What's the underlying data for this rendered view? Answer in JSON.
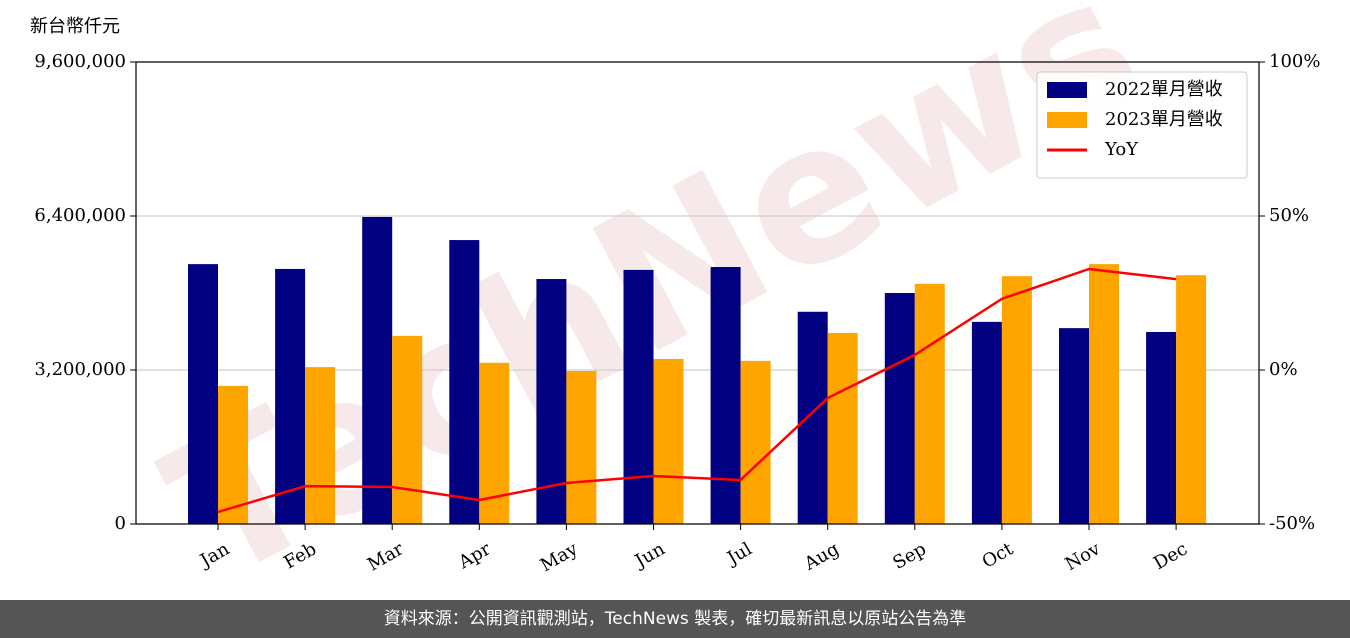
{
  "chart_data": {
    "type": "bar",
    "ylabel": "新台幣仟元",
    "watermark": "TechNews",
    "footer": "資料來源：公開資訊觀測站，TechNews 製表，確切最新訊息以原站公告為準",
    "categories": [
      "Jan",
      "Feb",
      "Mar",
      "Apr",
      "May",
      "Jun",
      "Jul",
      "Aug",
      "Sep",
      "Oct",
      "Nov",
      "Dec"
    ],
    "series": [
      {
        "name": "2022單月營收",
        "color": "#000080",
        "type": "bar",
        "values": [
          5400000,
          5300000,
          6380000,
          5900000,
          5090000,
          5280000,
          5340000,
          4410000,
          4800000,
          4200000,
          4070000,
          3990000
        ]
      },
      {
        "name": "2023單月營收",
        "color": "#ffa500",
        "type": "bar",
        "values": [
          2870000,
          3260000,
          3910000,
          3350000,
          3180000,
          3430000,
          3390000,
          3970000,
          4990000,
          5150000,
          5400000,
          5170000
        ]
      },
      {
        "name": "YoY",
        "color": "#ff0000",
        "type": "line",
        "axis": "y2",
        "values": [
          -46.1,
          -37.7,
          -38.0,
          -42.2,
          -36.7,
          -34.4,
          -35.7,
          -9.1,
          4.9,
          23.1,
          32.8,
          29.5
        ]
      }
    ],
    "ylim": [
      0,
      9600000
    ],
    "yticks": [
      0,
      {
        "value": 3200000,
        "label": "3,200,000"
      },
      {
        "value": 6400000,
        "label": "6,400,000"
      },
      {
        "value": 9600000,
        "label": "9,600,000"
      }
    ],
    "y2lim": [
      -50,
      100
    ],
    "y2ticks": [
      {
        "value": -50,
        "label": "-50%"
      },
      {
        "value": 0,
        "label": "0%"
      },
      {
        "value": 50,
        "label": "50%"
      },
      {
        "value": 100,
        "label": "100%"
      }
    ],
    "grid": true,
    "legend": "upper right"
  }
}
